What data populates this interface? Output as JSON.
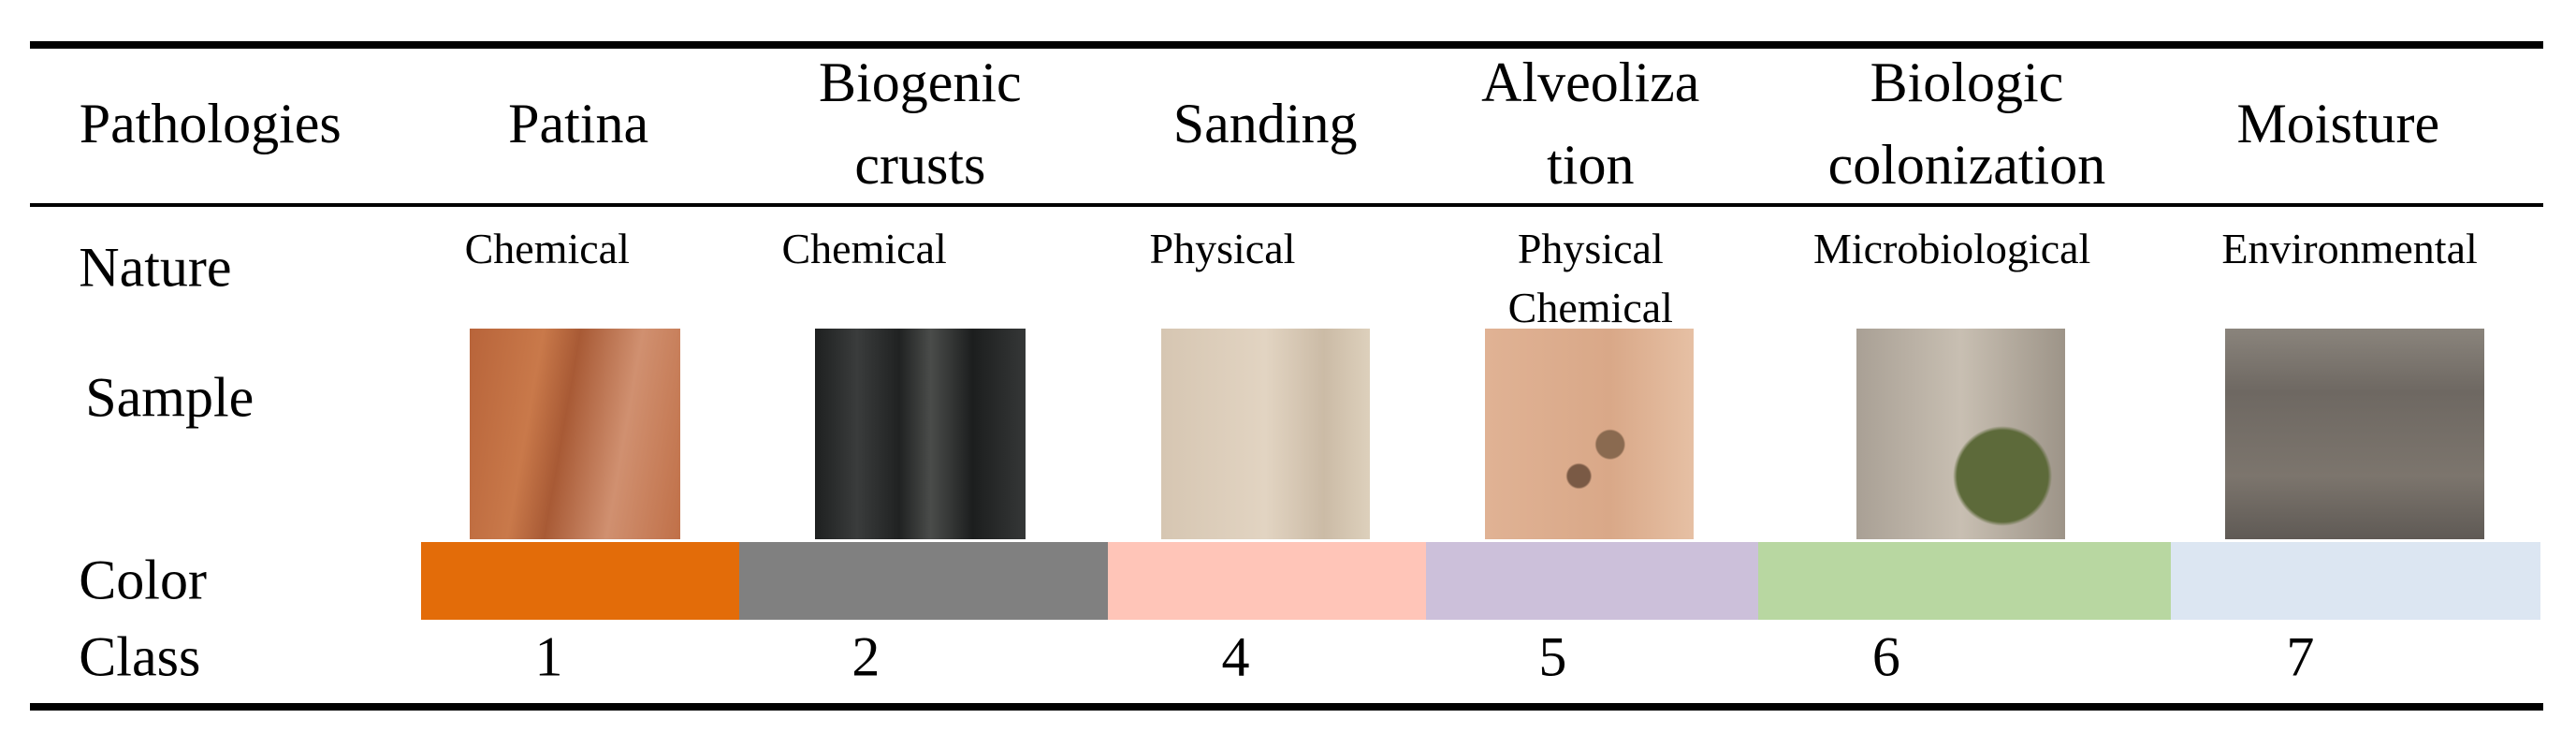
{
  "header": {
    "row_label": "Pathologies"
  },
  "rows": {
    "nature": "Nature",
    "sample": "Sample",
    "color": "Color",
    "class": "Class"
  },
  "columns": [
    {
      "name": "Patina",
      "nature": "Chemical",
      "color": "#e36c09",
      "class": 1
    },
    {
      "name": "Biogenic\ncrusts",
      "nature": "Chemical",
      "color": "#808080",
      "class": 2
    },
    {
      "name": "Sanding",
      "nature": "Physical",
      "color": "#ffc5b8",
      "class": 4
    },
    {
      "name": "Alveoliza\ntion",
      "nature": "Physical\nChemical",
      "color": "#ccc0da",
      "class": 5
    },
    {
      "name": "Biologic\ncolonization",
      "nature": "Microbiological",
      "color": "#b8d7a1",
      "class": 6
    },
    {
      "name": "Moisture",
      "nature": "Environmental",
      "color": "#dce6f2",
      "class": 7
    }
  ]
}
